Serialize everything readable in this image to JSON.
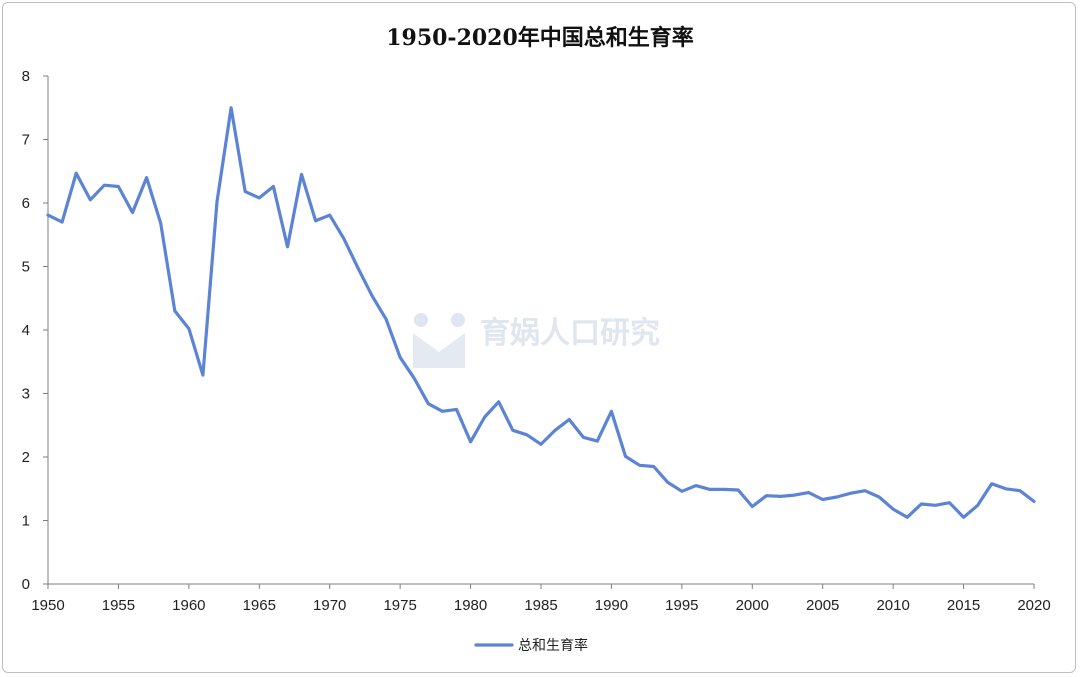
{
  "chart_data": {
    "type": "line",
    "title": "1950-2020年中国总和生育率",
    "xlabel": "",
    "ylabel": "",
    "xlim": [
      1950,
      2020
    ],
    "ylim": [
      0,
      8
    ],
    "x_ticks": [
      1950,
      1955,
      1960,
      1965,
      1970,
      1975,
      1980,
      1985,
      1990,
      1995,
      2000,
      2005,
      2010,
      2015,
      2020
    ],
    "y_ticks": [
      0,
      1,
      2,
      3,
      4,
      5,
      6,
      7,
      8
    ],
    "grid": false,
    "legend_position": "bottom",
    "series": [
      {
        "name": "总和生育率",
        "color": "#5b84d6",
        "points": [
          [
            1950,
            5.81
          ],
          [
            1951,
            5.7
          ],
          [
            1952,
            6.47
          ],
          [
            1953,
            6.05
          ],
          [
            1954,
            6.28
          ],
          [
            1955,
            6.26
          ],
          [
            1956,
            5.85
          ],
          [
            1957,
            6.4
          ],
          [
            1958,
            5.68
          ],
          [
            1959,
            4.3
          ],
          [
            1960,
            4.02
          ],
          [
            1961,
            3.29
          ],
          [
            1962,
            6.02
          ],
          [
            1963,
            7.5
          ],
          [
            1964,
            6.18
          ],
          [
            1965,
            6.08
          ],
          [
            1966,
            6.26
          ],
          [
            1967,
            5.31
          ],
          [
            1968,
            6.45
          ],
          [
            1969,
            5.72
          ],
          [
            1970,
            5.81
          ],
          [
            1971,
            5.44
          ],
          [
            1972,
            4.98
          ],
          [
            1973,
            4.54
          ],
          [
            1974,
            4.17
          ],
          [
            1975,
            3.57
          ],
          [
            1976,
            3.24
          ],
          [
            1977,
            2.84
          ],
          [
            1978,
            2.72
          ],
          [
            1979,
            2.75
          ],
          [
            1980,
            2.24
          ],
          [
            1981,
            2.63
          ],
          [
            1982,
            2.87
          ],
          [
            1983,
            2.42
          ],
          [
            1984,
            2.35
          ],
          [
            1985,
            2.2
          ],
          [
            1986,
            2.42
          ],
          [
            1987,
            2.59
          ],
          [
            1988,
            2.31
          ],
          [
            1989,
            2.25
          ],
          [
            1990,
            2.72
          ],
          [
            1991,
            2.01
          ],
          [
            1992,
            1.87
          ],
          [
            1993,
            1.85
          ],
          [
            1994,
            1.6
          ],
          [
            1995,
            1.46
          ],
          [
            1996,
            1.55
          ],
          [
            1997,
            1.49
          ],
          [
            1998,
            1.49
          ],
          [
            1999,
            1.48
          ],
          [
            2000,
            1.22
          ],
          [
            2001,
            1.39
          ],
          [
            2002,
            1.38
          ],
          [
            2003,
            1.4
          ],
          [
            2004,
            1.44
          ],
          [
            2005,
            1.33
          ],
          [
            2006,
            1.37
          ],
          [
            2007,
            1.43
          ],
          [
            2008,
            1.47
          ],
          [
            2009,
            1.37
          ],
          [
            2010,
            1.18
          ],
          [
            2011,
            1.05
          ],
          [
            2012,
            1.26
          ],
          [
            2013,
            1.24
          ],
          [
            2014,
            1.28
          ],
          [
            2015,
            1.05
          ],
          [
            2016,
            1.24
          ],
          [
            2017,
            1.58
          ],
          [
            2018,
            1.5
          ],
          [
            2019,
            1.47
          ],
          [
            2020,
            1.3
          ]
        ]
      }
    ]
  },
  "watermark": {
    "text": "育娲人口研究",
    "color": "#dfe6ef"
  }
}
